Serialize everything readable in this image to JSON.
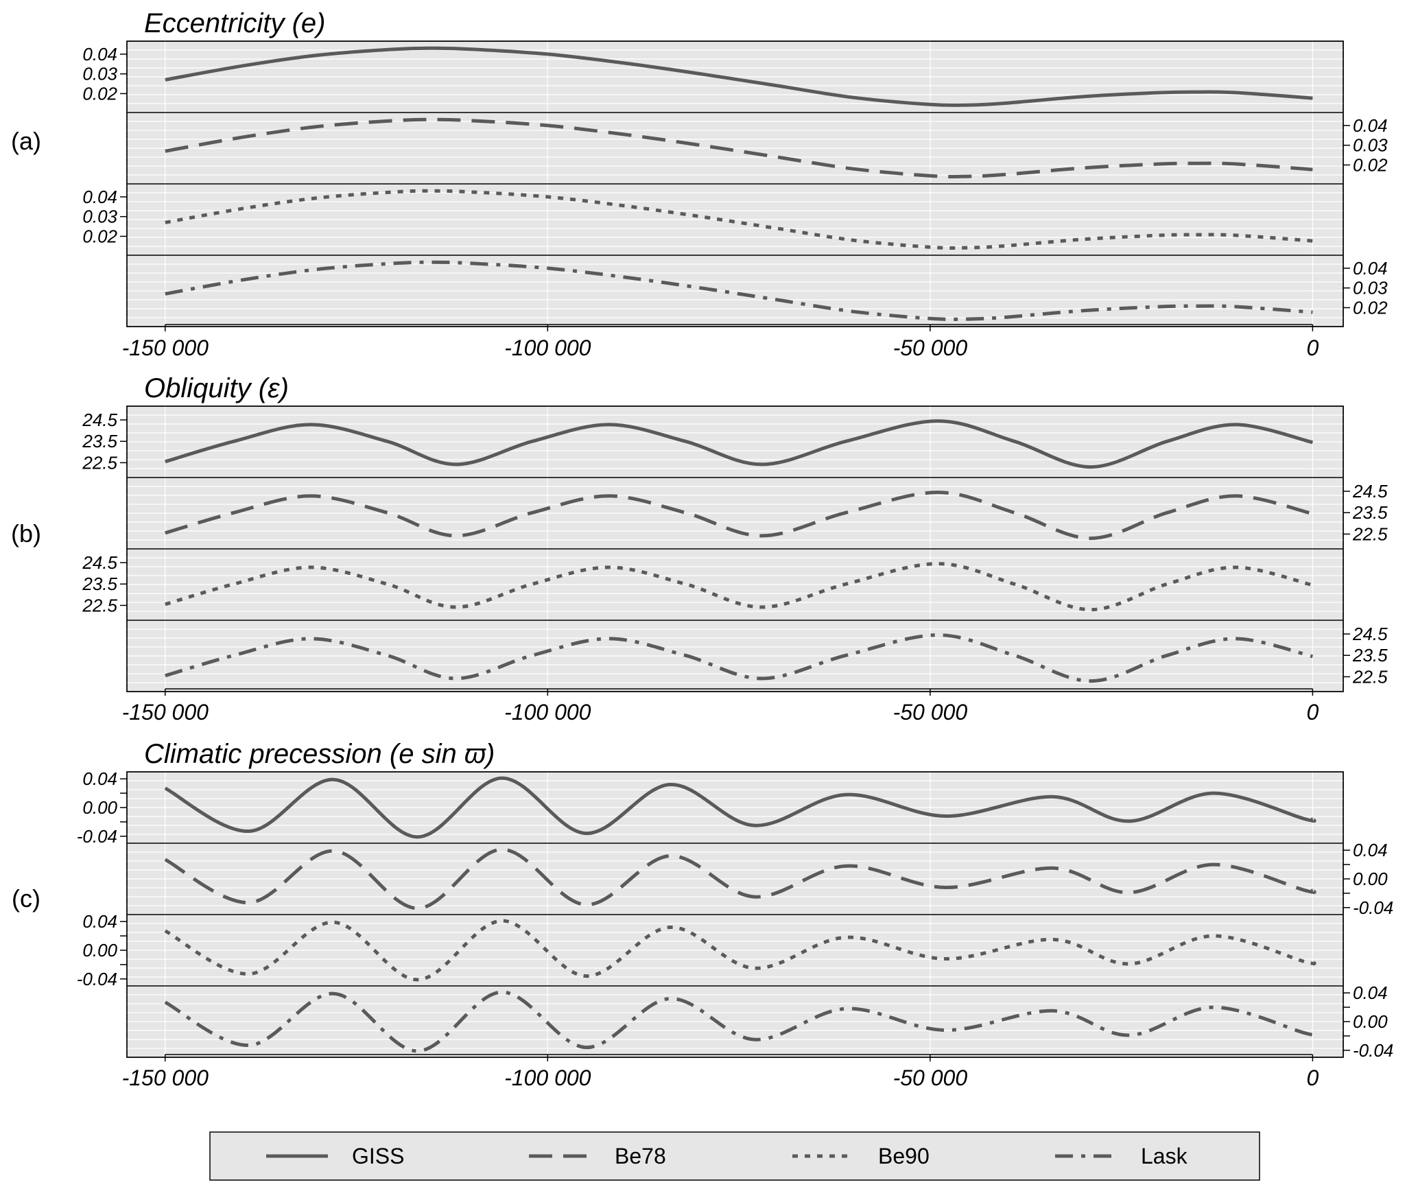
{
  "legend": {
    "items": [
      {
        "name": "GISS",
        "dash": "solid"
      },
      {
        "name": "Be78",
        "dash": "long-dash"
      },
      {
        "name": "Be90",
        "dash": "dotted"
      },
      {
        "name": "Lask",
        "dash": "dash-dot"
      }
    ]
  },
  "styles": {
    "panel_bg": "#e6e6e6",
    "line_color": "#5a5a5a",
    "grid_color": "#ffffff"
  },
  "chart_data": [
    {
      "type": "line",
      "label": "(a)",
      "title": "Eccentricity (e)",
      "xlim": [
        -155000,
        4000
      ],
      "x_ticks": [
        -150000,
        -100000,
        -50000,
        0
      ],
      "x_tick_labels": [
        "-150 000",
        "-100 000",
        "-50 000",
        "0"
      ],
      "ylim": [
        0.0125,
        0.0445
      ],
      "y_ticks": [
        0.02,
        0.03,
        0.04
      ],
      "y_tick_labels": [
        "0.02",
        "0.03",
        "0.04"
      ],
      "x": [
        -150000,
        -140000,
        -130000,
        -120000,
        -115000,
        -110000,
        -100000,
        -90000,
        -80000,
        -70000,
        -60000,
        -50000,
        -45000,
        -40000,
        -30000,
        -20000,
        -15000,
        -10000,
        0
      ],
      "series": [
        {
          "name": "GISS",
          "values": [
            0.027,
            0.034,
            0.0395,
            0.0425,
            0.043,
            0.0425,
            0.04,
            0.0355,
            0.03,
            0.024,
            0.018,
            0.0145,
            0.0142,
            0.0152,
            0.0185,
            0.0205,
            0.0208,
            0.0205,
            0.0177
          ]
        },
        {
          "name": "Be78",
          "values": [
            0.027,
            0.034,
            0.0395,
            0.0425,
            0.043,
            0.0425,
            0.04,
            0.0355,
            0.03,
            0.024,
            0.018,
            0.0145,
            0.0142,
            0.0152,
            0.0185,
            0.0205,
            0.0208,
            0.0205,
            0.0177
          ]
        },
        {
          "name": "Be90",
          "values": [
            0.027,
            0.034,
            0.0395,
            0.0425,
            0.043,
            0.0425,
            0.04,
            0.0355,
            0.03,
            0.024,
            0.018,
            0.0145,
            0.0142,
            0.0152,
            0.0185,
            0.0205,
            0.0208,
            0.0205,
            0.0177
          ]
        },
        {
          "name": "Lask",
          "values": [
            0.027,
            0.034,
            0.0395,
            0.0425,
            0.043,
            0.0425,
            0.04,
            0.0355,
            0.03,
            0.024,
            0.018,
            0.0145,
            0.0142,
            0.0152,
            0.0185,
            0.0205,
            0.0208,
            0.0205,
            0.0177
          ]
        }
      ]
    },
    {
      "type": "line",
      "label": "(b)",
      "title": "Obliquity (ε)",
      "xlim": [
        -155000,
        4000
      ],
      "x_ticks": [
        -150000,
        -100000,
        -50000,
        0
      ],
      "x_tick_labels": [
        "-150 000",
        "-100 000",
        "-50 000",
        "0"
      ],
      "ylim": [
        22.0,
        24.95
      ],
      "y_ticks": [
        22.5,
        23.5,
        24.5
      ],
      "y_tick_labels": [
        "22.5",
        "23.5",
        "24.5"
      ],
      "x": [
        -150000,
        -141000,
        -131000,
        -121000,
        -112000,
        -102000,
        -92000,
        -82000,
        -72000,
        -61000,
        -49000,
        -39000,
        -29000,
        -19000,
        -10000,
        0
      ],
      "series": [
        {
          "name": "GISS",
          "values": [
            22.55,
            23.5,
            24.28,
            23.5,
            22.42,
            23.5,
            24.28,
            23.5,
            22.42,
            23.5,
            24.45,
            23.5,
            22.3,
            23.5,
            24.28,
            23.45
          ]
        },
        {
          "name": "Be78",
          "values": [
            22.55,
            23.5,
            24.28,
            23.5,
            22.42,
            23.5,
            24.28,
            23.5,
            22.42,
            23.5,
            24.45,
            23.5,
            22.3,
            23.5,
            24.28,
            23.45
          ]
        },
        {
          "name": "Be90",
          "values": [
            22.55,
            23.5,
            24.28,
            23.5,
            22.42,
            23.5,
            24.28,
            23.5,
            22.42,
            23.5,
            24.45,
            23.5,
            22.3,
            23.5,
            24.28,
            23.45
          ]
        },
        {
          "name": "Lask",
          "values": [
            22.55,
            23.5,
            24.28,
            23.5,
            22.42,
            23.5,
            24.28,
            23.5,
            22.42,
            23.5,
            24.45,
            23.5,
            22.3,
            23.5,
            24.28,
            23.45
          ]
        }
      ]
    },
    {
      "type": "line",
      "label": "(c)",
      "title": "Climatic precession (e sin ϖ)",
      "xlim": [
        -155000,
        4000
      ],
      "x_ticks": [
        -150000,
        -100000,
        -50000,
        0
      ],
      "x_tick_labels": [
        "-150 000",
        "-100 000",
        "-50 000",
        "0"
      ],
      "ylim": [
        -0.044,
        0.044
      ],
      "y_ticks": [
        -0.04,
        -0.02,
        0.0,
        0.02,
        0.04
      ],
      "y_tick_labels": [
        "-0.04",
        "",
        "0.00",
        "",
        "0.04"
      ],
      "x": [
        -150000,
        -139000,
        -128000,
        -117000,
        -106000,
        -95000,
        -84000,
        -73000,
        -61000,
        -48000,
        -34000,
        -24000,
        -13000,
        -1000,
        0
      ],
      "series": [
        {
          "name": "GISS",
          "values": [
            0.027,
            -0.033,
            0.039,
            -0.041,
            0.041,
            -0.036,
            0.032,
            -0.025,
            0.018,
            -0.012,
            0.015,
            -0.019,
            0.02,
            -0.016,
            -0.016
          ]
        },
        {
          "name": "Be78",
          "values": [
            0.027,
            -0.033,
            0.039,
            -0.041,
            0.041,
            -0.036,
            0.032,
            -0.025,
            0.018,
            -0.012,
            0.015,
            -0.019,
            0.02,
            -0.016,
            -0.016
          ]
        },
        {
          "name": "Be90",
          "values": [
            0.027,
            -0.033,
            0.039,
            -0.041,
            0.041,
            -0.036,
            0.032,
            -0.025,
            0.018,
            -0.012,
            0.015,
            -0.019,
            0.02,
            -0.016,
            -0.016
          ]
        },
        {
          "name": "Lask",
          "values": [
            0.027,
            -0.033,
            0.039,
            -0.041,
            0.041,
            -0.036,
            0.032,
            -0.025,
            0.018,
            -0.012,
            0.015,
            -0.019,
            0.02,
            -0.016,
            -0.016
          ]
        }
      ]
    }
  ]
}
